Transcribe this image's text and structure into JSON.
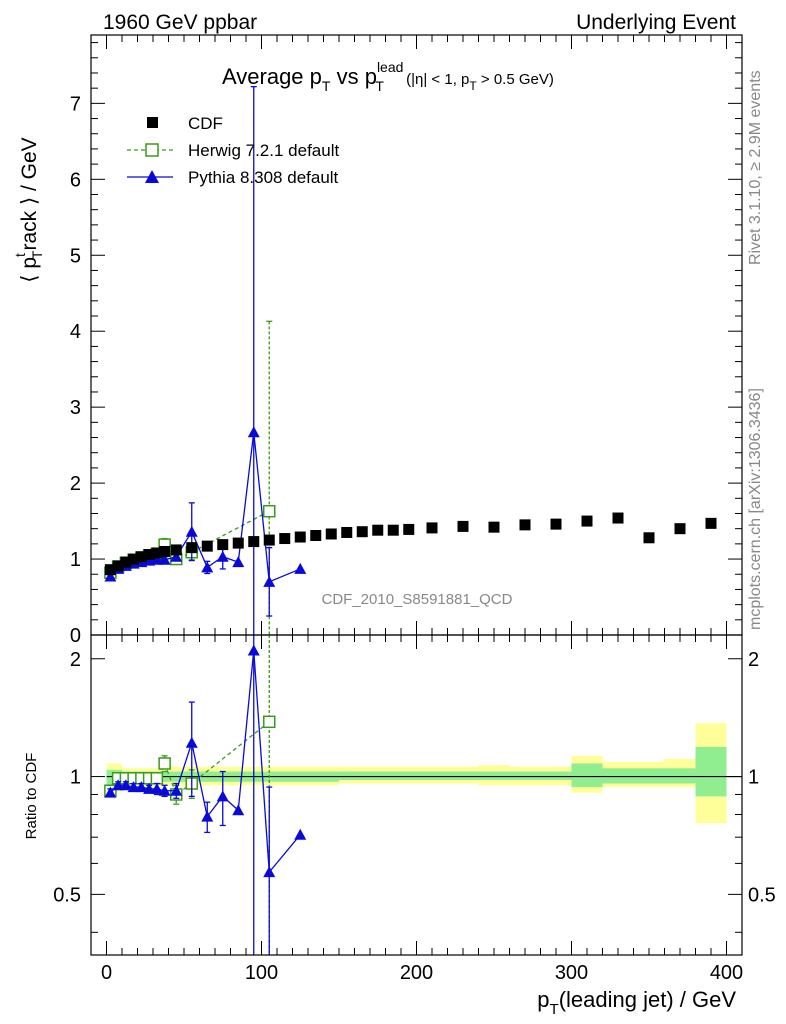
{
  "header": {
    "left": "1960 GeV ppbar",
    "right": "Underlying Event"
  },
  "side": {
    "rivet": "Rivet 3.1.10, ≥ 2.9M events",
    "mcplots": "mcplots.cern.ch [arXiv:1306.3436]"
  },
  "watermark": "CDF_2010_S8591881_QCD",
  "colors": {
    "cdf": "#000000",
    "herwig": "#3a9a1a",
    "pythia": "#0a0ad8",
    "band_yellow": "#ffff99",
    "band_green": "#90ee90"
  },
  "chart_data": [
    {
      "type": "scatter",
      "title_parts": {
        "t1": "Average p",
        "t1_sub": "T",
        "t2": " vs p",
        "t2_sup": "lead",
        "t2_sub": "T",
        "t3": " (|η| < 1, p",
        "t3_sub": "T",
        "t4": " > 0.5 GeV)"
      },
      "ylabel_parts": {
        "a": "⟨ p",
        "sup": "t",
        "sub": "T",
        "b": "rack ⟩ / GeV"
      },
      "xlim": [
        -10,
        410
      ],
      "ylim": [
        0,
        7.9
      ],
      "ytick_labels": [
        "0",
        "1",
        "2",
        "3",
        "4",
        "5",
        "6",
        "7"
      ],
      "legend_position": "top-left",
      "series": [
        {
          "name": "CDF",
          "marker": "square-filled",
          "x": [
            2.5,
            7.5,
            12.5,
            17.5,
            22.5,
            27.5,
            32.5,
            37.5,
            45,
            55,
            65,
            75,
            85,
            95,
            105,
            115,
            125,
            135,
            145,
            155,
            165,
            175,
            185,
            195,
            210,
            230,
            250,
            270,
            290,
            310,
            330,
            350,
            370,
            390
          ],
          "y": [
            0.86,
            0.91,
            0.96,
            1.0,
            1.03,
            1.06,
            1.08,
            1.1,
            1.12,
            1.15,
            1.17,
            1.19,
            1.21,
            1.23,
            1.25,
            1.27,
            1.29,
            1.31,
            1.33,
            1.35,
            1.36,
            1.38,
            1.38,
            1.39,
            1.41,
            1.43,
            1.42,
            1.45,
            1.46,
            1.5,
            1.54,
            1.28,
            1.4,
            1.47
          ]
        },
        {
          "name": "Herwig 7.2.1 default",
          "marker": "square-open",
          "line": "dashed",
          "x": [
            2.5,
            7.5,
            12.5,
            17.5,
            22.5,
            27.5,
            32.5,
            37.5,
            45,
            55,
            105
          ],
          "y": [
            0.82,
            0.9,
            0.95,
            0.99,
            1.02,
            1.05,
            1.07,
            1.19,
            1.0,
            1.09,
            1.63
          ],
          "yerr": [
            0.03,
            0.02,
            0.02,
            0.02,
            0.02,
            0.03,
            0.03,
            0.08,
            0.06,
            0.1,
            2.5
          ]
        },
        {
          "name": "Pythia 8.308 default",
          "marker": "triangle-filled",
          "line": "solid",
          "x": [
            2.5,
            7.5,
            12.5,
            17.5,
            22.5,
            27.5,
            32.5,
            37.5,
            45,
            55,
            65,
            75,
            85,
            95,
            105,
            125
          ],
          "y": [
            0.77,
            0.87,
            0.91,
            0.94,
            0.96,
            0.98,
            0.99,
            0.99,
            1.03,
            1.36,
            0.89,
            1.03,
            0.96,
            2.67,
            0.7,
            0.87
          ],
          "yerr": [
            0.02,
            0.02,
            0.02,
            0.02,
            0.03,
            0.03,
            0.03,
            0.04,
            0.05,
            0.38,
            0.08,
            0.16,
            0.0,
            4.55,
            0.45,
            0.0
          ]
        }
      ]
    },
    {
      "type": "scatter",
      "ylabel": "Ratio to CDF",
      "xlabel_parts": {
        "a": "p",
        "sub": "T",
        "b": "(leading jet) / GeV"
      },
      "xlim": [
        -10,
        410
      ],
      "ylim": [
        0.35,
        2.3
      ],
      "xtick_labels": [
        "0",
        "100",
        "200",
        "300",
        "400"
      ],
      "ytick_labels": [
        "0.5",
        "1",
        "2"
      ],
      "band": [
        {
          "x": [
            0,
            10
          ],
          "yellow": [
            0.91,
            1.08
          ],
          "green": [
            0.95,
            1.04
          ]
        },
        {
          "x": [
            10,
            40
          ],
          "yellow": [
            0.95,
            1.05
          ],
          "green": [
            0.97,
            1.03
          ]
        },
        {
          "x": [
            40,
            150
          ],
          "yellow": [
            0.95,
            1.06
          ],
          "green": [
            0.97,
            1.03
          ]
        },
        {
          "x": [
            150,
            240
          ],
          "yellow": [
            0.96,
            1.06
          ],
          "green": [
            0.98,
            1.03
          ]
        },
        {
          "x": [
            240,
            260
          ],
          "yellow": [
            0.95,
            1.07
          ],
          "green": [
            0.98,
            1.03
          ]
        },
        {
          "x": [
            260,
            300
          ],
          "yellow": [
            0.95,
            1.06
          ],
          "green": [
            0.98,
            1.03
          ]
        },
        {
          "x": [
            300,
            320
          ],
          "yellow": [
            0.91,
            1.13
          ],
          "green": [
            0.94,
            1.08
          ]
        },
        {
          "x": [
            320,
            360
          ],
          "yellow": [
            0.94,
            1.09
          ],
          "green": [
            0.96,
            1.05
          ]
        },
        {
          "x": [
            360,
            380
          ],
          "yellow": [
            0.94,
            1.11
          ],
          "green": [
            0.96,
            1.05
          ]
        },
        {
          "x": [
            380,
            400
          ],
          "yellow": [
            0.76,
            1.37
          ],
          "green": [
            0.89,
            1.19
          ]
        }
      ],
      "series": [
        {
          "name": "Herwig 7.2.1 default",
          "x": [
            2.5,
            7.5,
            12.5,
            17.5,
            22.5,
            27.5,
            32.5,
            37.5,
            45,
            55,
            105
          ],
          "y": [
            0.92,
            0.99,
            0.99,
            0.99,
            0.99,
            0.99,
            0.99,
            1.08,
            0.9,
            0.96,
            1.38
          ],
          "yerr": [
            0.03,
            0.02,
            0.02,
            0.02,
            0.02,
            0.03,
            0.03,
            0.05,
            0.05,
            0.08,
            2.2
          ]
        },
        {
          "name": "Pythia 8.308 default",
          "x": [
            2.5,
            7.5,
            12.5,
            17.5,
            22.5,
            27.5,
            32.5,
            37.5,
            45,
            55,
            65,
            75,
            85,
            95,
            105,
            125
          ],
          "y": [
            0.91,
            0.95,
            0.95,
            0.94,
            0.94,
            0.93,
            0.93,
            0.92,
            0.92,
            1.22,
            0.79,
            0.89,
            0.82,
            2.1,
            0.57,
            0.71
          ],
          "yerr": [
            0.02,
            0.02,
            0.02,
            0.02,
            0.02,
            0.02,
            0.03,
            0.03,
            0.04,
            0.33,
            0.07,
            0.14,
            0.0,
            3.7,
            0.37,
            0.0
          ]
        }
      ]
    }
  ]
}
